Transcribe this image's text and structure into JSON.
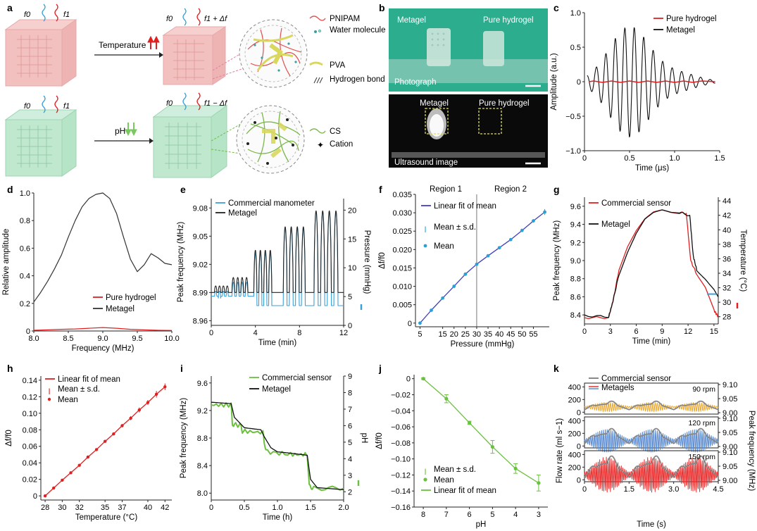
{
  "figure": {
    "panel_letters": [
      "a",
      "b",
      "c",
      "d",
      "e",
      "f",
      "g",
      "h",
      "i",
      "j",
      "k"
    ]
  },
  "panel_a": {
    "top_left_f0": "f0",
    "top_left_f1": "f1",
    "top_right_f0": "f0",
    "top_right_f1": "f1 + Δf",
    "bottom_left_f0": "f0",
    "bottom_left_f1": "f1",
    "bottom_right_f0": "f0",
    "bottom_right_f1": "f1 − Δf",
    "temperature_label": "Temperature",
    "ph_label": "pH",
    "legend_top": [
      "PNIPAM",
      "Water molecule",
      "PVA",
      "Hydrogen bond"
    ],
    "legend_bottom": [
      "CS",
      "Cation"
    ],
    "colors": {
      "pnipam": "#e05050",
      "water": "#3aa0a0",
      "pva": "#d8d860",
      "hbond": "#333333",
      "cs": "#7ab84a",
      "cation": "#222222",
      "cube_red": "#f0b8b8",
      "cube_green": "#b8e8c8"
    }
  },
  "panel_b": {
    "photo_labels": [
      "Metagel",
      "Pure hydrogel"
    ],
    "photo_caption": "Photograph",
    "us_labels": [
      "Metagel",
      "Pure hydrogel"
    ],
    "us_caption": "Ultrasound image",
    "colors": {
      "photo_bg": "#2cae8e",
      "us_bg": "#0a0a0a",
      "box": "#e0e050"
    }
  },
  "chart_data": [
    {
      "panel": "c",
      "type": "line",
      "xlabel": "Time (μs)",
      "ylabel": "Amplitude (a.u.)",
      "xlim": [
        0,
        1.5
      ],
      "ylim": [
        -1.0,
        1.0
      ],
      "xticks": [
        "0",
        "0.5",
        "1.0",
        "1.5"
      ],
      "xtick_values": [
        0,
        0.5,
        1.0,
        1.5
      ],
      "yticks": [
        "1.0",
        "0.5",
        "0",
        "−0.5",
        "−1.0"
      ],
      "ytick_values": [
        1.0,
        0.5,
        0,
        -0.5,
        -1.0
      ],
      "legend": [
        "Pure hydrogel",
        "Metagel"
      ],
      "series": [
        {
          "name": "Pure hydrogel",
          "color": "#e02020",
          "x": [
            0.05,
            0.1,
            0.2,
            0.3,
            0.4,
            0.5,
            0.6,
            0.7,
            0.8,
            0.9,
            1.0,
            1.1,
            1.2,
            1.3,
            1.45
          ],
          "y": [
            0,
            0.01,
            -0.01,
            0.01,
            -0.01,
            0.01,
            -0.01,
            0.01,
            -0.01,
            0.01,
            -0.01,
            0.01,
            -0.01,
            0.01,
            0
          ]
        },
        {
          "name": "Metagel",
          "color": "#111111",
          "peaks_x": [
            0.04,
            0.1,
            0.16,
            0.23,
            0.3,
            0.36,
            0.43,
            0.49,
            0.56,
            0.62,
            0.69,
            0.75,
            0.82,
            0.88,
            0.95,
            1.01,
            1.08,
            1.14,
            1.21,
            1.27,
            1.34,
            1.4,
            1.45
          ],
          "peaks_y": [
            0,
            0.25,
            -0.2,
            0.55,
            -0.65,
            0.7,
            -0.62,
            0.78,
            -0.82,
            0.6,
            -0.48,
            0.38,
            -0.3,
            0.25,
            -0.22,
            0.2,
            -0.18,
            0.18,
            -0.12,
            0.12,
            -0.08,
            0.05,
            0
          ]
        }
      ]
    },
    {
      "panel": "d",
      "type": "line",
      "xlabel": "Frequency (MHz)",
      "ylabel": "Relative amplitude",
      "xlim": [
        8.0,
        10.0
      ],
      "ylim": [
        0,
        1.0
      ],
      "xticks": [
        "8.0",
        "8.5",
        "9.0",
        "9.5",
        "10.0"
      ],
      "xtick_values": [
        8.0,
        8.5,
        9.0,
        9.5,
        10.0
      ],
      "yticks": [
        "1.0",
        "0.8",
        "0.6",
        "0.4",
        "0.2",
        "0"
      ],
      "ytick_values": [
        1.0,
        0.8,
        0.6,
        0.4,
        0.2,
        0
      ],
      "legend": [
        "Pure hydrogel",
        "Metagel"
      ],
      "series": [
        {
          "name": "Pure hydrogel",
          "color": "#e02020",
          "x": [
            8.0,
            8.2,
            8.4,
            8.6,
            8.8,
            9.0,
            9.2,
            9.4,
            9.6,
            9.8,
            10.0
          ],
          "y": [
            0.005,
            0.008,
            0.012,
            0.015,
            0.02,
            0.025,
            0.02,
            0.012,
            0.008,
            0.005,
            0.004
          ]
        },
        {
          "name": "Metagel",
          "color": "#333333",
          "x": [
            8.0,
            8.1,
            8.2,
            8.3,
            8.4,
            8.5,
            8.6,
            8.7,
            8.8,
            8.9,
            9.0,
            9.1,
            9.2,
            9.3,
            9.4,
            9.5,
            9.6,
            9.7,
            9.8,
            9.9,
            10.0
          ],
          "y": [
            0.21,
            0.28,
            0.36,
            0.45,
            0.55,
            0.68,
            0.8,
            0.9,
            0.96,
            0.99,
            1.0,
            0.96,
            0.85,
            0.68,
            0.52,
            0.43,
            0.48,
            0.56,
            0.53,
            0.49,
            0.48
          ]
        }
      ]
    },
    {
      "panel": "e",
      "type": "line",
      "xlabel": "Time (min)",
      "ylabel": "Peak frequency (MHz)",
      "y2label": "Pressure (mmHg)",
      "xlim": [
        0,
        12
      ],
      "ylim": [
        8.955,
        9.09
      ],
      "y2lim": [
        0,
        22
      ],
      "xticks": [
        "0",
        "4",
        "8",
        "12"
      ],
      "xtick_values": [
        0,
        4,
        8,
        12
      ],
      "yticks": [
        "9.08",
        "9.05",
        "9.02",
        "8.99",
        "8.96"
      ],
      "ytick_values": [
        9.08,
        9.05,
        9.02,
        8.99,
        8.96
      ],
      "y2ticks": [
        "20",
        "15",
        "10",
        "5",
        "0"
      ],
      "y2tick_values": [
        20,
        15,
        10,
        5,
        0
      ],
      "legend": [
        "Commercial manometer",
        "Metagel"
      ],
      "pulse_groups": [
        {
          "start": 0.4,
          "count": 4,
          "period": 0.35,
          "peak": 8.997
        },
        {
          "start": 2.0,
          "count": 4,
          "period": 0.4,
          "peak": 9.006
        },
        {
          "start": 4.0,
          "count": 4,
          "period": 0.45,
          "peak": 9.035
        },
        {
          "start": 6.7,
          "count": 4,
          "period": 0.55,
          "peak": 9.06
        },
        {
          "start": 9.5,
          "count": 4,
          "period": 0.6,
          "peak": 9.077
        }
      ],
      "series": [
        {
          "name": "Commercial manometer",
          "color": "#3aa0d8"
        },
        {
          "name": "Metagel",
          "color": "#222222"
        }
      ]
    },
    {
      "panel": "f",
      "type": "scatter",
      "xlabel": "Pressure (mmHg)",
      "ylabel": "Δf/f0",
      "xlim": [
        3,
        62
      ],
      "ylim": [
        -0.001,
        0.035
      ],
      "xticks": [
        "5",
        "15",
        "20",
        "25",
        "30",
        "35",
        "40",
        "45",
        "50",
        "55"
      ],
      "xtick_values": [
        5,
        15,
        20,
        25,
        30,
        35,
        40,
        45,
        50,
        55
      ],
      "yticks": [
        "0.035",
        "0.030",
        "0.025",
        "0.020",
        "0.015",
        "0.010",
        "0.005",
        "0"
      ],
      "ytick_values": [
        0.035,
        0.03,
        0.025,
        0.02,
        0.015,
        0.01,
        0.005,
        0
      ],
      "region_labels": [
        "Region 1",
        "Region 2"
      ],
      "region_boundary": 30,
      "legend": [
        "Linear fit of mean",
        "Mean ± s.d.",
        "Mean"
      ],
      "x": [
        5,
        10,
        15,
        20,
        25,
        30,
        35,
        40,
        45,
        50,
        55,
        60
      ],
      "y": [
        0,
        0.0035,
        0.0068,
        0.01,
        0.0133,
        0.016,
        0.0183,
        0.0205,
        0.0227,
        0.0252,
        0.0278,
        0.0302
      ],
      "err": [
        0.0002,
        0.0003,
        0.0004,
        0.0003,
        0.0003,
        0.0004,
        0.0003,
        0.0003,
        0.0003,
        0.0004,
        0.0005,
        0.0008
      ],
      "colors": {
        "fit": "#4040c0",
        "point": "#2aa0d8"
      }
    },
    {
      "panel": "g",
      "type": "line",
      "xlabel": "Time (min)",
      "ylabel": "Peak frequency (MHz)",
      "y2label": "Temperature (°C)",
      "xlim": [
        0,
        15.5
      ],
      "ylim": [
        8.3,
        9.7
      ],
      "y2lim": [
        27,
        44.5
      ],
      "xticks": [
        "0",
        "3",
        "6",
        "9",
        "12",
        "15"
      ],
      "xtick_values": [
        0,
        3,
        6,
        9,
        12,
        15
      ],
      "yticks": [
        "9.6",
        "9.4",
        "9.2",
        "9.0",
        "8.8",
        "8.6",
        "8.4"
      ],
      "ytick_values": [
        9.6,
        9.4,
        9.2,
        9.0,
        8.8,
        8.6,
        8.4
      ],
      "y2ticks": [
        "44",
        "42",
        "40",
        "38",
        "36",
        "34",
        "32",
        "30",
        "28"
      ],
      "y2tick_values": [
        44,
        42,
        40,
        38,
        36,
        34,
        32,
        30,
        28
      ],
      "legend": [
        "Commercial sensor",
        "Metagel"
      ],
      "series": [
        {
          "name": "Commercial sensor",
          "color": "#e02020",
          "x": [
            0,
            2.8,
            3.3,
            4,
            5,
            6,
            7,
            8,
            9,
            10,
            11,
            11.8,
            12.3,
            13,
            14,
            15,
            15.5
          ],
          "y": [
            8.37,
            8.37,
            8.55,
            8.9,
            9.15,
            9.32,
            9.45,
            9.53,
            9.56,
            9.54,
            9.53,
            9.52,
            9.0,
            8.85,
            8.7,
            8.45,
            8.38
          ]
        },
        {
          "name": "Metagel",
          "color": "#111111",
          "x": [
            0,
            2.8,
            3.3,
            4,
            5,
            6,
            7,
            8,
            9,
            10,
            11,
            12.2,
            12.6,
            13,
            14,
            15,
            15.5
          ],
          "y": [
            8.39,
            8.38,
            8.55,
            8.85,
            9.1,
            9.3,
            9.45,
            9.52,
            9.55,
            9.53,
            9.53,
            9.5,
            9.05,
            8.9,
            8.8,
            8.68,
            8.6
          ]
        }
      ]
    },
    {
      "panel": "h",
      "type": "scatter",
      "xlabel": "Temperature (°C)",
      "ylabel": "Δf/f0",
      "xlim": [
        27.5,
        42.8
      ],
      "ylim": [
        -0.005,
        0.145
      ],
      "xticks": [
        "28",
        "30",
        "32",
        "35",
        "37",
        "40",
        "42"
      ],
      "xtick_values": [
        28,
        30,
        32,
        35,
        37,
        40,
        42
      ],
      "yticks": [
        "0.14",
        "0.12",
        "0.10",
        "0.08",
        "0.06",
        "0.04",
        "0.02",
        "0"
      ],
      "ytick_values": [
        0.14,
        0.12,
        0.1,
        0.08,
        0.06,
        0.04,
        0.02,
        0
      ],
      "legend": [
        "Linear fit of mean",
        "Mean ± s.d.",
        "Mean"
      ],
      "x": [
        28,
        29,
        30,
        31,
        32,
        33,
        34,
        35,
        36,
        37,
        38,
        39,
        40,
        41,
        42
      ],
      "y": [
        0,
        0.0095,
        0.019,
        0.028,
        0.037,
        0.047,
        0.056,
        0.066,
        0.075,
        0.085,
        0.094,
        0.104,
        0.113,
        0.123,
        0.132
      ],
      "err": [
        0.001,
        0.001,
        0.001,
        0.0012,
        0.0012,
        0.0015,
        0.0012,
        0.0015,
        0.0015,
        0.002,
        0.0025,
        0.003,
        0.003,
        0.004,
        0.004
      ],
      "colors": {
        "fit": "#e02020",
        "point": "#e02020"
      }
    },
    {
      "panel": "i",
      "type": "line",
      "xlabel": "Time (h)",
      "ylabel": "Peak frequency (MHz)",
      "y2label": "pH",
      "xlim": [
        0,
        2.0
      ],
      "ylim": [
        7.9,
        9.7
      ],
      "y2lim": [
        1.5,
        9
      ],
      "xticks": [
        "0",
        "0.5",
        "1.0",
        "1.5",
        "2.0"
      ],
      "xtick_values": [
        0,
        0.5,
        1.0,
        1.5,
        2.0
      ],
      "yticks": [
        "9.6",
        "9.2",
        "8.8",
        "8.4",
        "8.0"
      ],
      "ytick_values": [
        9.6,
        9.2,
        8.8,
        8.4,
        8.0
      ],
      "y2ticks": [
        "9",
        "8",
        "7",
        "6",
        "5",
        "4",
        "3",
        "2"
      ],
      "y2tick_values": [
        9,
        8,
        7,
        6,
        5,
        4,
        3,
        2
      ],
      "legend": [
        "Commercial sensor",
        "Metagel"
      ],
      "series": [
        {
          "name": "Commercial sensor",
          "color": "#6cc040",
          "x": [
            0,
            0.3,
            0.32,
            0.45,
            0.47,
            0.78,
            0.8,
            0.85,
            1.2,
            1.45,
            1.48,
            1.55,
            2.0
          ],
          "y": [
            9.28,
            9.28,
            9.0,
            8.98,
            8.9,
            8.88,
            8.72,
            8.6,
            8.56,
            8.56,
            8.1,
            8.07,
            8.07
          ]
        },
        {
          "name": "Metagel",
          "color": "#111111",
          "x": [
            0,
            0.3,
            0.35,
            0.45,
            0.5,
            0.75,
            0.8,
            0.9,
            1.0,
            1.2,
            1.45,
            1.5,
            1.6,
            2.0
          ],
          "y": [
            9.32,
            9.3,
            9.1,
            9.0,
            8.95,
            8.92,
            8.82,
            8.66,
            8.6,
            8.58,
            8.55,
            8.2,
            8.08,
            8.05
          ]
        }
      ]
    },
    {
      "panel": "j",
      "type": "scatter",
      "xlabel": "pH",
      "ylabel": "Δf/f0",
      "xlim": [
        8.4,
        2.6
      ],
      "ylim": [
        -0.16,
        0.005
      ],
      "xticks": [
        "8",
        "7",
        "6",
        "5",
        "4",
        "3"
      ],
      "xtick_values": [
        8,
        7,
        6,
        5,
        4,
        3
      ],
      "yticks": [
        "0",
        "−0.02",
        "−0.04",
        "−0.06",
        "−0.08",
        "−0.10",
        "−0.12",
        "−0.14",
        "−0.16"
      ],
      "ytick_values": [
        0,
        -0.02,
        -0.04,
        -0.06,
        -0.08,
        -0.1,
        -0.12,
        -0.14,
        -0.16
      ],
      "legend": [
        "Mean ± s.d.",
        "Mean",
        "Linear fit of mean"
      ],
      "x": [
        8,
        7,
        6,
        5,
        4,
        3
      ],
      "y": [
        0,
        -0.025,
        -0.055,
        -0.085,
        -0.112,
        -0.13
      ],
      "err": [
        0.001,
        0.005,
        0.002,
        0.008,
        0.006,
        0.01
      ],
      "colors": {
        "fit": "#6cc040",
        "point": "#6cc040"
      }
    },
    {
      "panel": "k",
      "type": "line",
      "xlabel": "Time (s)",
      "ylabel": "Flow rate (ml s−1)",
      "y2label": "Peak frequency (MHz)",
      "xlim": [
        0,
        4.5
      ],
      "ylim": [
        -30,
        460
      ],
      "y2lim": [
        8.995,
        9.105
      ],
      "xticks": [
        "0",
        "1.5",
        "3.0",
        "4.5"
      ],
      "xtick_values": [
        0,
        1.5,
        3.0,
        4.5
      ],
      "legend": [
        "Commercial sensor",
        "Metagels"
      ],
      "subplots": [
        {
          "rpm": "90 rpm",
          "yticks": [
            "400",
            "200",
            "0"
          ],
          "ytick_values": [
            400,
            200,
            0
          ],
          "y2ticks": [
            "9.10",
            "9.05",
            "9.00"
          ],
          "y2tick_values": [
            9.1,
            9.05,
            9.0
          ],
          "metagel_color": "#e8a830",
          "flow_amp": 160,
          "osc_amp": 0.012,
          "osc_freq": 14
        },
        {
          "rpm": "120 rpm",
          "yticks": [
            "400",
            "200",
            "0"
          ],
          "ytick_values": [
            400,
            200,
            0
          ],
          "y2ticks": [
            "9.10",
            "9.05",
            "9.00"
          ],
          "y2tick_values": [
            9.1,
            9.05,
            9.0
          ],
          "metagel_color": "#5a8ad0",
          "flow_amp": 280,
          "osc_amp": 0.03,
          "osc_freq": 16
        },
        {
          "rpm": "150 rpm",
          "yticks": [
            "400",
            "200",
            "0"
          ],
          "ytick_values": [
            400,
            200,
            0
          ],
          "y2ticks": [
            "9.10",
            "9.05",
            "9.00"
          ],
          "y2tick_values": [
            9.1,
            9.05,
            9.0
          ],
          "metagel_color": "#e83030",
          "flow_amp": 400,
          "osc_amp": 0.045,
          "osc_freq": 18
        }
      ],
      "commercial_color": "#888888"
    }
  ]
}
